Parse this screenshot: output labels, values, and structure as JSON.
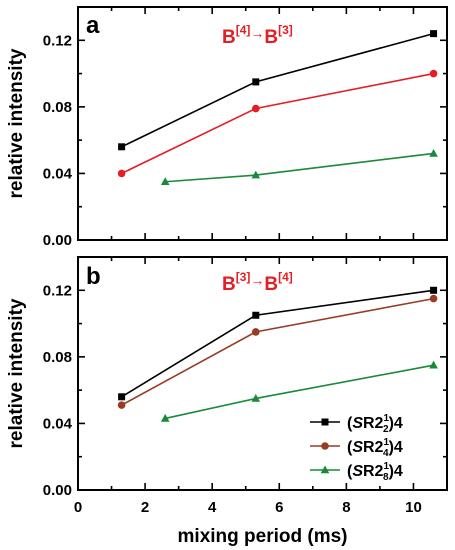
{
  "chart_data": [
    {
      "type": "line",
      "panel_label": "a",
      "annotation": {
        "from": "B",
        "from_sup": "[4]",
        "arrow": "→",
        "to": "B",
        "to_sup": "[3]"
      },
      "ylabel": "relative intensity",
      "xlabel": "",
      "xlim": [
        0,
        11
      ],
      "ylim": [
        0,
        0.14
      ],
      "yticks": [
        "0.00",
        "0.04",
        "0.08",
        "0.12"
      ],
      "xticks": [],
      "grid": false,
      "series": [
        {
          "color": "#000000",
          "marker": "square",
          "x": [
            1.3,
            5.3,
            10.6
          ],
          "y": [
            0.056,
            0.095,
            0.124
          ]
        },
        {
          "color": "#e31e24",
          "marker": "circle",
          "x": [
            1.3,
            5.3,
            10.6
          ],
          "y": [
            0.04,
            0.079,
            0.1
          ]
        },
        {
          "color": "#1a8a3a",
          "marker": "triangle",
          "x": [
            2.6,
            5.3,
            10.6
          ],
          "y": [
            0.035,
            0.039,
            0.052
          ]
        }
      ]
    },
    {
      "type": "line",
      "panel_label": "b",
      "annotation": {
        "from": "B",
        "from_sup": "[3]",
        "arrow": "→",
        "to": "B",
        "to_sup": "[4]"
      },
      "ylabel": "relative intensity",
      "xlabel": "mixing period (ms)",
      "xlim": [
        0,
        11
      ],
      "ylim": [
        0,
        0.14
      ],
      "yticks": [
        "0.00",
        "0.04",
        "0.08",
        "0.12"
      ],
      "xticks": [
        "0",
        "2",
        "4",
        "6",
        "8",
        "10"
      ],
      "grid": false,
      "legend_position": "bottom-right",
      "series": [
        {
          "name": "(SR2$_2^1$)4",
          "legend": {
            "pre": "(",
            "italic": "S",
            "mid": "R2",
            "sup": "1",
            "sub": "2",
            "post": ")4"
          },
          "color": "#000000",
          "marker": "square",
          "x": [
            1.3,
            5.3,
            10.6
          ],
          "y": [
            0.056,
            0.105,
            0.12
          ]
        },
        {
          "name": "(SR2$_4^1$)4",
          "legend": {
            "pre": "(",
            "italic": "S",
            "mid": "R2",
            "sup": "1",
            "sub": "4",
            "post": ")4"
          },
          "color": "#9a3b24",
          "marker": "circle",
          "x": [
            1.3,
            5.3,
            10.6
          ],
          "y": [
            0.051,
            0.095,
            0.115
          ]
        },
        {
          "name": "(SR2$_8^1$)4",
          "legend": {
            "pre": "(",
            "italic": "S",
            "mid": "R2",
            "sup": "1",
            "sub": "8",
            "post": ")4"
          },
          "color": "#1a8a3a",
          "marker": "triangle",
          "x": [
            2.6,
            5.3,
            10.6
          ],
          "y": [
            0.043,
            0.055,
            0.075
          ]
        }
      ]
    }
  ]
}
